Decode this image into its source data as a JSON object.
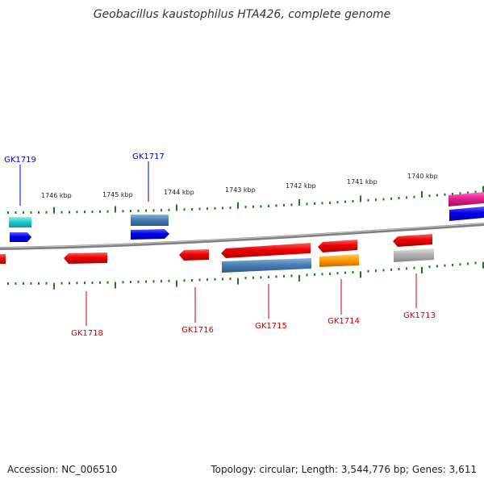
{
  "title": "Geobacillus kaustophilus HTA426, complete genome",
  "ruler": {
    "ticks": [
      "1746 kbp",
      "1745 kbp",
      "1744 kbp",
      "1743 kbp",
      "1742 kbp",
      "1741 kbp",
      "1740 kbp"
    ]
  },
  "genes_top": [
    {
      "label": "GK1719",
      "color": "#0000cc"
    },
    {
      "label": "GK1717",
      "color": "#0000cc"
    }
  ],
  "genes_bottom": [
    {
      "label": "GK1718",
      "color": "#cc0000"
    },
    {
      "label": "GK1716",
      "color": "#cc0000"
    },
    {
      "label": "GK1715",
      "color": "#cc0000"
    },
    {
      "label": "GK1714",
      "color": "#cc0000"
    },
    {
      "label": "GK1713",
      "color": "#cc0000"
    }
  ],
  "colors": {
    "backbone": "#888888",
    "tick": "#227722",
    "cds_red": "#e00000",
    "steelblue": "#4a7fb5",
    "blue": "#0000ee",
    "teal": "#22cccc",
    "orange": "#ff8c00",
    "gray": "#aaaaaa",
    "magenta": "#e0208a"
  },
  "footer": {
    "accession": "Accession: NC_006510",
    "topology": "Topology: circular; Length: 3,544,776 bp; Genes: 3,611"
  }
}
